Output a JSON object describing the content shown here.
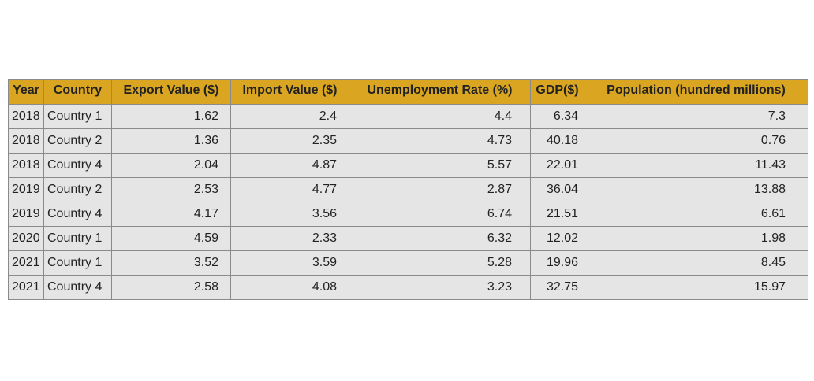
{
  "chart_data": {
    "type": "table",
    "columns": [
      "Year",
      "Country",
      "Export Value ($)",
      "Import Value ($)",
      "Unemployment Rate (%)",
      "GDP($)",
      "Population (hundred millions)"
    ],
    "rows": [
      [
        "2018",
        "Country 1",
        "1.62",
        "2.4",
        "4.4",
        "6.34",
        "7.3"
      ],
      [
        "2018",
        "Country 2",
        "1.36",
        "2.35",
        "4.73",
        "40.18",
        "0.76"
      ],
      [
        "2018",
        "Country 4",
        "2.04",
        "4.87",
        "5.57",
        "22.01",
        "11.43"
      ],
      [
        "2019",
        "Country 2",
        "2.53",
        "4.77",
        "2.87",
        "36.04",
        "13.88"
      ],
      [
        "2019",
        "Country 4",
        "4.17",
        "3.56",
        "6.74",
        "21.51",
        "6.61"
      ],
      [
        "2020",
        "Country 1",
        "4.59",
        "2.33",
        "6.32",
        "12.02",
        "1.98"
      ],
      [
        "2021",
        "Country 1",
        "3.52",
        "3.59",
        "5.28",
        "19.96",
        "8.45"
      ],
      [
        "2021",
        "Country 4",
        "2.58",
        "4.08",
        "3.23",
        "32.75",
        "15.97"
      ]
    ],
    "colors": {
      "header_background": "#daa520",
      "cell_background": "#e5e5e5",
      "border": "#8a8a8a"
    }
  }
}
